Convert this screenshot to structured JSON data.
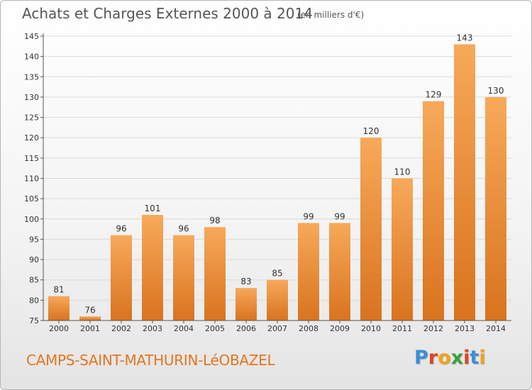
{
  "title": "Achats et Charges Externes 2000 à 2014",
  "subtitle": "(en milliers d'€)",
  "footer_label": "CAMPS-SAINT-MATHURIN-LéOBAZEL",
  "brand": {
    "text": "Proxiti",
    "letter_colors": [
      "#3b8ed8",
      "#e0441f",
      "#f0a21a",
      "#3aa33a",
      "#e0441f",
      "#3b8ed8",
      "#f0a21a"
    ]
  },
  "colors": {
    "bar_light": "#f7a95a",
    "bar_dark": "#d9731e",
    "axis": "#555555",
    "grid": "#d9d9d9",
    "label": "#333333"
  },
  "chart_data": {
    "type": "bar",
    "title": "Achats et Charges Externes 2000 à 2014",
    "subtitle": "(en milliers d'€)",
    "categories": [
      "2000",
      "2001",
      "2002",
      "2003",
      "2004",
      "2005",
      "2006",
      "2007",
      "2008",
      "2009",
      "2010",
      "2011",
      "2012",
      "2013",
      "2014"
    ],
    "values": [
      81,
      76,
      96,
      101,
      96,
      98,
      83,
      85,
      99,
      99,
      120,
      110,
      129,
      143,
      130
    ],
    "ylim": [
      75,
      145
    ],
    "yticks": [
      75,
      80,
      85,
      90,
      95,
      100,
      105,
      110,
      115,
      120,
      125,
      130,
      135,
      140,
      145
    ],
    "xlabel": "",
    "ylabel": "",
    "grid": true,
    "data_labels": true
  }
}
